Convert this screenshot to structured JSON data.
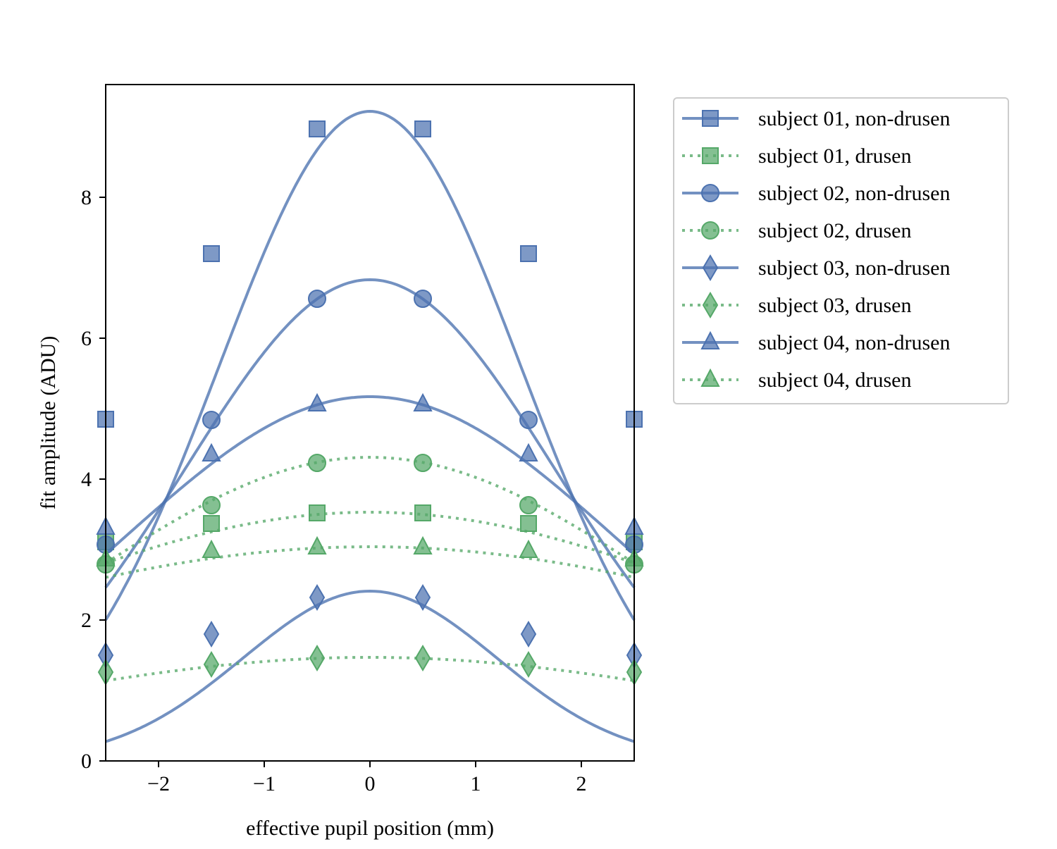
{
  "chart_data": {
    "type": "line",
    "xlabel": "effective pupil position (mm)",
    "ylabel": "fit amplitude (ADU)",
    "xlim": [
      -2.5,
      2.5
    ],
    "ylim": [
      0,
      9.6
    ],
    "x_ticks": [
      -2,
      -1,
      0,
      1,
      2
    ],
    "x_tick_labels": [
      "−2",
      "−1",
      "0",
      "1",
      "2"
    ],
    "y_ticks": [
      0,
      2,
      4,
      6,
      8
    ],
    "y_tick_labels": [
      "0",
      "2",
      "4",
      "6",
      "8"
    ],
    "grid": false,
    "legend_position": "outside-right",
    "colors": {
      "non_drusen": "#4c72b0",
      "drusen": "#55a868"
    },
    "x": [
      -2.5,
      -1.5,
      -0.5,
      0.5,
      1.5,
      2.5
    ],
    "series": [
      {
        "name": "subject 01, non-drusen",
        "group": "non_drusen",
        "marker": "square",
        "linestyle": "solid",
        "values": [
          4.85,
          7.2,
          8.97,
          8.97,
          7.2,
          4.85
        ],
        "peak": 9.22,
        "sigma": 1.43
      },
      {
        "name": "subject 01, drusen",
        "group": "drusen",
        "marker": "square",
        "linestyle": "dotted",
        "values": [
          3.11,
          3.37,
          3.52,
          3.52,
          3.37,
          3.11
        ],
        "peak": 3.53,
        "sigma": 3.7
      },
      {
        "name": "subject 02, non-drusen",
        "group": "non_drusen",
        "marker": "circle",
        "linestyle": "solid",
        "values": [
          3.07,
          4.84,
          6.56,
          6.56,
          4.84,
          3.07
        ],
        "peak": 6.83,
        "sigma": 1.75
      },
      {
        "name": "subject 02, drusen",
        "group": "drusen",
        "marker": "circle",
        "linestyle": "dotted",
        "values": [
          2.79,
          3.63,
          4.23,
          4.23,
          3.63,
          2.79
        ],
        "peak": 4.31,
        "sigma": 2.7
      },
      {
        "name": "subject 03, non-drusen",
        "group": "non_drusen",
        "marker": "diamond",
        "linestyle": "solid",
        "values": [
          1.5,
          1.8,
          2.32,
          2.32,
          1.8,
          1.5
        ],
        "peak": 2.41,
        "sigma": 1.2
      },
      {
        "name": "subject 03, drusen",
        "group": "drusen",
        "marker": "diamond",
        "linestyle": "dotted",
        "values": [
          1.26,
          1.37,
          1.46,
          1.46,
          1.37,
          1.26
        ],
        "peak": 1.47,
        "sigma": 3.5
      },
      {
        "name": "subject 04, non-drusen",
        "group": "non_drusen",
        "marker": "triangle",
        "linestyle": "solid",
        "values": [
          3.31,
          4.35,
          5.06,
          5.06,
          4.35,
          3.31
        ],
        "peak": 5.17,
        "sigma": 2.35
      },
      {
        "name": "subject 04, drusen",
        "group": "drusen",
        "marker": "triangle",
        "linestyle": "dotted",
        "values": [
          2.86,
          2.98,
          3.03,
          3.03,
          2.98,
          2.86
        ],
        "peak": 3.04,
        "sigma": 4.5
      }
    ]
  }
}
